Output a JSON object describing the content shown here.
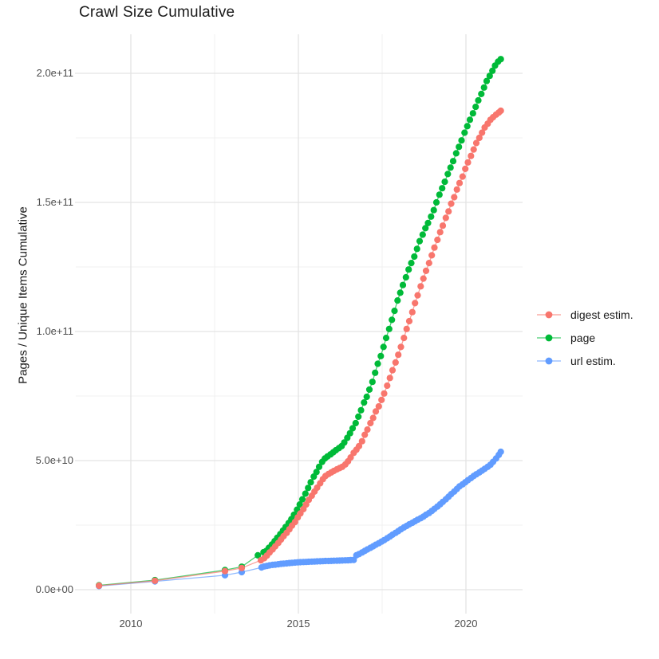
{
  "title": "Crawl Size Cumulative",
  "axes": {
    "y_label": "Pages / Unique Items Cumulative",
    "x_label": ""
  },
  "legend": {
    "items": [
      {
        "id": "digest",
        "label": "digest estim.",
        "color": "#F8766D"
      },
      {
        "id": "page",
        "label": "page",
        "color": "#00BA38"
      },
      {
        "id": "url",
        "label": "url estim.",
        "color": "#619CFF"
      }
    ]
  },
  "colors": {
    "background": "#FFFFFF",
    "grid_major": "#E3E3E3",
    "grid_minor": "#F1F1F1",
    "tick_text": "#4D4D4D",
    "title_text": "#1A1A1A"
  },
  "chart_data": {
    "type": "scatter",
    "title": "Crawl Size Cumulative",
    "xlabel": "",
    "ylabel": "Pages / Unique Items Cumulative",
    "unit_note": "values in billions (1e9) of pages / unique items",
    "x_range_years": [
      2008.45,
      2021.69
    ],
    "y_range_billions": [
      -7.7,
      215.1
    ],
    "grid": true,
    "legend_position": "right",
    "x_ticks": [
      {
        "value": 2010,
        "label": "2010"
      },
      {
        "value": 2015,
        "label": "2015"
      },
      {
        "value": 2020,
        "label": "2020"
      }
    ],
    "x_minor": [
      2012.5,
      2017.5
    ],
    "y_ticks": [
      {
        "value": 0,
        "label": "0.0e+00"
      },
      {
        "value": 50,
        "label": "5.0e+10"
      },
      {
        "value": 100,
        "label": "1.0e+11"
      },
      {
        "value": 150,
        "label": "1.5e+11"
      },
      {
        "value": 200,
        "label": "2.0e+11"
      }
    ],
    "y_minor": [
      25,
      75,
      125,
      175
    ],
    "series": [
      {
        "name": "digest estim.",
        "color": "#F8766D",
        "points": [
          [
            2009.05,
            1.55
          ],
          [
            2010.72,
            3.45
          ],
          [
            2012.81,
            7.2
          ],
          [
            2013.31,
            8.4
          ],
          [
            2013.88,
            11.4
          ],
          [
            2013.98,
            12.2
          ],
          [
            2014.06,
            13.2
          ],
          [
            2014.14,
            14.4
          ],
          [
            2014.23,
            15.6
          ],
          [
            2014.31,
            16.8
          ],
          [
            2014.4,
            18.1
          ],
          [
            2014.48,
            19.4
          ],
          [
            2014.56,
            20.7
          ],
          [
            2014.65,
            22.0
          ],
          [
            2014.73,
            23.4
          ],
          [
            2014.81,
            24.8
          ],
          [
            2014.9,
            26.2
          ],
          [
            2014.98,
            28.0
          ],
          [
            2015.06,
            29.5
          ],
          [
            2015.15,
            31.2
          ],
          [
            2015.23,
            33.0
          ],
          [
            2015.31,
            34.8
          ],
          [
            2015.4,
            36.4
          ],
          [
            2015.48,
            38.0
          ],
          [
            2015.56,
            39.5
          ],
          [
            2015.65,
            41.2
          ],
          [
            2015.73,
            42.8
          ],
          [
            2015.81,
            44.0
          ],
          [
            2015.9,
            44.8
          ],
          [
            2015.98,
            45.4
          ],
          [
            2016.06,
            46.0
          ],
          [
            2016.15,
            46.6
          ],
          [
            2016.23,
            47.1
          ],
          [
            2016.31,
            47.6
          ],
          [
            2016.4,
            48.5
          ],
          [
            2016.48,
            49.7
          ],
          [
            2016.56,
            51.2
          ],
          [
            2016.65,
            53.0
          ],
          [
            2016.73,
            54.2
          ],
          [
            2016.81,
            55.6
          ],
          [
            2016.9,
            57.5
          ],
          [
            2016.98,
            60.0
          ],
          [
            2017.06,
            62.0
          ],
          [
            2017.15,
            64.5
          ],
          [
            2017.23,
            66.5
          ],
          [
            2017.31,
            69.0
          ],
          [
            2017.4,
            71.0
          ],
          [
            2017.48,
            73.5
          ],
          [
            2017.56,
            76.0
          ],
          [
            2017.65,
            79.0
          ],
          [
            2017.73,
            82.0
          ],
          [
            2017.81,
            85.0
          ],
          [
            2017.9,
            88.0
          ],
          [
            2017.98,
            91.0
          ],
          [
            2018.06,
            94.0
          ],
          [
            2018.15,
            97.5
          ],
          [
            2018.23,
            101.0
          ],
          [
            2018.31,
            104.0
          ],
          [
            2018.4,
            107.5
          ],
          [
            2018.48,
            111.0
          ],
          [
            2018.56,
            114.0
          ],
          [
            2018.65,
            117.5
          ],
          [
            2018.73,
            120.5
          ],
          [
            2018.81,
            123.5
          ],
          [
            2018.9,
            126.5
          ],
          [
            2018.98,
            129.5
          ],
          [
            2019.06,
            132.5
          ],
          [
            2019.15,
            135.5
          ],
          [
            2019.23,
            138.5
          ],
          [
            2019.31,
            141.0
          ],
          [
            2019.4,
            144.0
          ],
          [
            2019.48,
            146.5
          ],
          [
            2019.56,
            149.5
          ],
          [
            2019.65,
            152.0
          ],
          [
            2019.73,
            155.0
          ],
          [
            2019.81,
            157.5
          ],
          [
            2019.9,
            160.0
          ],
          [
            2019.98,
            163.0
          ],
          [
            2020.06,
            165.5
          ],
          [
            2020.15,
            168.0
          ],
          [
            2020.23,
            170.5
          ],
          [
            2020.31,
            173.0
          ],
          [
            2020.4,
            175.0
          ],
          [
            2020.48,
            177.0
          ],
          [
            2020.56,
            179.0
          ],
          [
            2020.65,
            180.5
          ],
          [
            2020.73,
            182.0
          ],
          [
            2020.81,
            183.0
          ],
          [
            2020.9,
            184.0
          ],
          [
            2020.98,
            184.8
          ],
          [
            2021.04,
            185.5
          ]
        ]
      },
      {
        "name": "page",
        "color": "#00BA38",
        "points": [
          [
            2009.05,
            1.7
          ],
          [
            2010.72,
            3.7
          ],
          [
            2012.81,
            7.6
          ],
          [
            2013.31,
            8.9
          ],
          [
            2013.79,
            13.3
          ],
          [
            2013.96,
            14.5
          ],
          [
            2014.04,
            15.0
          ],
          [
            2014.12,
            16.2
          ],
          [
            2014.21,
            17.5
          ],
          [
            2014.29,
            18.8
          ],
          [
            2014.37,
            20.1
          ],
          [
            2014.46,
            21.5
          ],
          [
            2014.54,
            22.9
          ],
          [
            2014.62,
            24.3
          ],
          [
            2014.71,
            25.8
          ],
          [
            2014.79,
            27.3
          ],
          [
            2014.87,
            29.0
          ],
          [
            2014.96,
            31.0
          ],
          [
            2015.04,
            33.0
          ],
          [
            2015.12,
            35.0
          ],
          [
            2015.21,
            37.2
          ],
          [
            2015.29,
            39.4
          ],
          [
            2015.37,
            41.6
          ],
          [
            2015.46,
            43.8
          ],
          [
            2015.54,
            45.6
          ],
          [
            2015.62,
            47.6
          ],
          [
            2015.71,
            49.5
          ],
          [
            2015.79,
            50.8
          ],
          [
            2015.87,
            51.6
          ],
          [
            2015.96,
            52.4
          ],
          [
            2016.04,
            53.2
          ],
          [
            2016.12,
            54.0
          ],
          [
            2016.21,
            54.8
          ],
          [
            2016.29,
            55.6
          ],
          [
            2016.37,
            57.0
          ],
          [
            2016.46,
            58.8
          ],
          [
            2016.54,
            60.6
          ],
          [
            2016.62,
            62.5
          ],
          [
            2016.71,
            64.5
          ],
          [
            2016.79,
            67.0
          ],
          [
            2016.87,
            69.5
          ],
          [
            2016.96,
            72.5
          ],
          [
            2017.04,
            74.7
          ],
          [
            2017.12,
            77.5
          ],
          [
            2017.21,
            80.5
          ],
          [
            2017.29,
            84.0
          ],
          [
            2017.37,
            87.5
          ],
          [
            2017.46,
            90.5
          ],
          [
            2017.54,
            94.0
          ],
          [
            2017.62,
            97.5
          ],
          [
            2017.71,
            101.0
          ],
          [
            2017.79,
            104.5
          ],
          [
            2017.87,
            108.0
          ],
          [
            2017.96,
            112.0
          ],
          [
            2018.04,
            115.0
          ],
          [
            2018.12,
            118.0
          ],
          [
            2018.21,
            121.0
          ],
          [
            2018.29,
            124.0
          ],
          [
            2018.37,
            126.5
          ],
          [
            2018.46,
            129.0
          ],
          [
            2018.54,
            132.0
          ],
          [
            2018.62,
            135.0
          ],
          [
            2018.71,
            137.5
          ],
          [
            2018.79,
            140.0
          ],
          [
            2018.87,
            142.0
          ],
          [
            2018.96,
            144.5
          ],
          [
            2019.04,
            147.0
          ],
          [
            2019.12,
            150.0
          ],
          [
            2019.21,
            153.0
          ],
          [
            2019.29,
            155.5
          ],
          [
            2019.37,
            158.0
          ],
          [
            2019.46,
            161.0
          ],
          [
            2019.54,
            163.5
          ],
          [
            2019.62,
            166.0
          ],
          [
            2019.71,
            169.0
          ],
          [
            2019.79,
            171.5
          ],
          [
            2019.87,
            174.0
          ],
          [
            2019.96,
            177.0
          ],
          [
            2020.04,
            179.5
          ],
          [
            2020.12,
            182.0
          ],
          [
            2020.21,
            184.5
          ],
          [
            2020.29,
            187.0
          ],
          [
            2020.37,
            189.5
          ],
          [
            2020.46,
            192.0
          ],
          [
            2020.54,
            194.5
          ],
          [
            2020.62,
            197.0
          ],
          [
            2020.71,
            199.0
          ],
          [
            2020.79,
            201.0
          ],
          [
            2020.87,
            203.0
          ],
          [
            2020.96,
            204.5
          ],
          [
            2021.04,
            205.5
          ]
        ]
      },
      {
        "name": "url estim.",
        "color": "#619CFF",
        "points": [
          [
            2009.05,
            1.4
          ],
          [
            2010.72,
            3.2
          ],
          [
            2012.81,
            5.6
          ],
          [
            2013.31,
            6.8
          ],
          [
            2013.9,
            8.6
          ],
          [
            2013.98,
            9.0
          ],
          [
            2014.06,
            9.2
          ],
          [
            2014.14,
            9.4
          ],
          [
            2014.23,
            9.6
          ],
          [
            2014.31,
            9.7
          ],
          [
            2014.4,
            9.85
          ],
          [
            2014.48,
            10.0
          ],
          [
            2014.56,
            10.1
          ],
          [
            2014.65,
            10.2
          ],
          [
            2014.73,
            10.3
          ],
          [
            2014.81,
            10.4
          ],
          [
            2014.9,
            10.5
          ],
          [
            2014.98,
            10.6
          ],
          [
            2015.06,
            10.65
          ],
          [
            2015.15,
            10.7
          ],
          [
            2015.23,
            10.75
          ],
          [
            2015.31,
            10.8
          ],
          [
            2015.4,
            10.85
          ],
          [
            2015.48,
            10.9
          ],
          [
            2015.56,
            10.95
          ],
          [
            2015.65,
            11.0
          ],
          [
            2015.73,
            11.05
          ],
          [
            2015.81,
            11.1
          ],
          [
            2015.9,
            11.12
          ],
          [
            2015.98,
            11.15
          ],
          [
            2016.06,
            11.2
          ],
          [
            2016.15,
            11.22
          ],
          [
            2016.23,
            11.25
          ],
          [
            2016.31,
            11.3
          ],
          [
            2016.4,
            11.35
          ],
          [
            2016.48,
            11.4
          ],
          [
            2016.56,
            11.45
          ],
          [
            2016.65,
            11.5
          ],
          [
            2016.73,
            13.3
          ],
          [
            2016.81,
            13.8
          ],
          [
            2016.9,
            14.4
          ],
          [
            2016.98,
            15.0
          ],
          [
            2017.06,
            15.6
          ],
          [
            2017.15,
            16.2
          ],
          [
            2017.23,
            16.8
          ],
          [
            2017.31,
            17.4
          ],
          [
            2017.4,
            18.0
          ],
          [
            2017.48,
            18.6
          ],
          [
            2017.56,
            19.2
          ],
          [
            2017.65,
            19.9
          ],
          [
            2017.73,
            20.6
          ],
          [
            2017.81,
            21.3
          ],
          [
            2017.9,
            22.0
          ],
          [
            2017.98,
            22.7
          ],
          [
            2018.06,
            23.4
          ],
          [
            2018.15,
            24.1
          ],
          [
            2018.23,
            24.7
          ],
          [
            2018.31,
            25.3
          ],
          [
            2018.4,
            25.9
          ],
          [
            2018.48,
            26.5
          ],
          [
            2018.56,
            27.1
          ],
          [
            2018.65,
            27.7
          ],
          [
            2018.73,
            28.3
          ],
          [
            2018.81,
            29.0
          ],
          [
            2018.9,
            29.7
          ],
          [
            2018.98,
            30.5
          ],
          [
            2019.06,
            31.3
          ],
          [
            2019.15,
            32.2
          ],
          [
            2019.23,
            33.1
          ],
          [
            2019.31,
            34.0
          ],
          [
            2019.4,
            35.0
          ],
          [
            2019.48,
            36.0
          ],
          [
            2019.56,
            37.0
          ],
          [
            2019.65,
            38.0
          ],
          [
            2019.73,
            39.0
          ],
          [
            2019.81,
            40.0
          ],
          [
            2019.9,
            40.8
          ],
          [
            2019.98,
            41.6
          ],
          [
            2020.06,
            42.4
          ],
          [
            2020.15,
            43.2
          ],
          [
            2020.23,
            44.0
          ],
          [
            2020.31,
            44.7
          ],
          [
            2020.4,
            45.4
          ],
          [
            2020.48,
            46.1
          ],
          [
            2020.56,
            46.8
          ],
          [
            2020.65,
            47.6
          ],
          [
            2020.73,
            48.4
          ],
          [
            2020.81,
            49.5
          ],
          [
            2020.9,
            50.8
          ],
          [
            2020.98,
            52.2
          ],
          [
            2021.04,
            53.4
          ]
        ]
      }
    ]
  }
}
